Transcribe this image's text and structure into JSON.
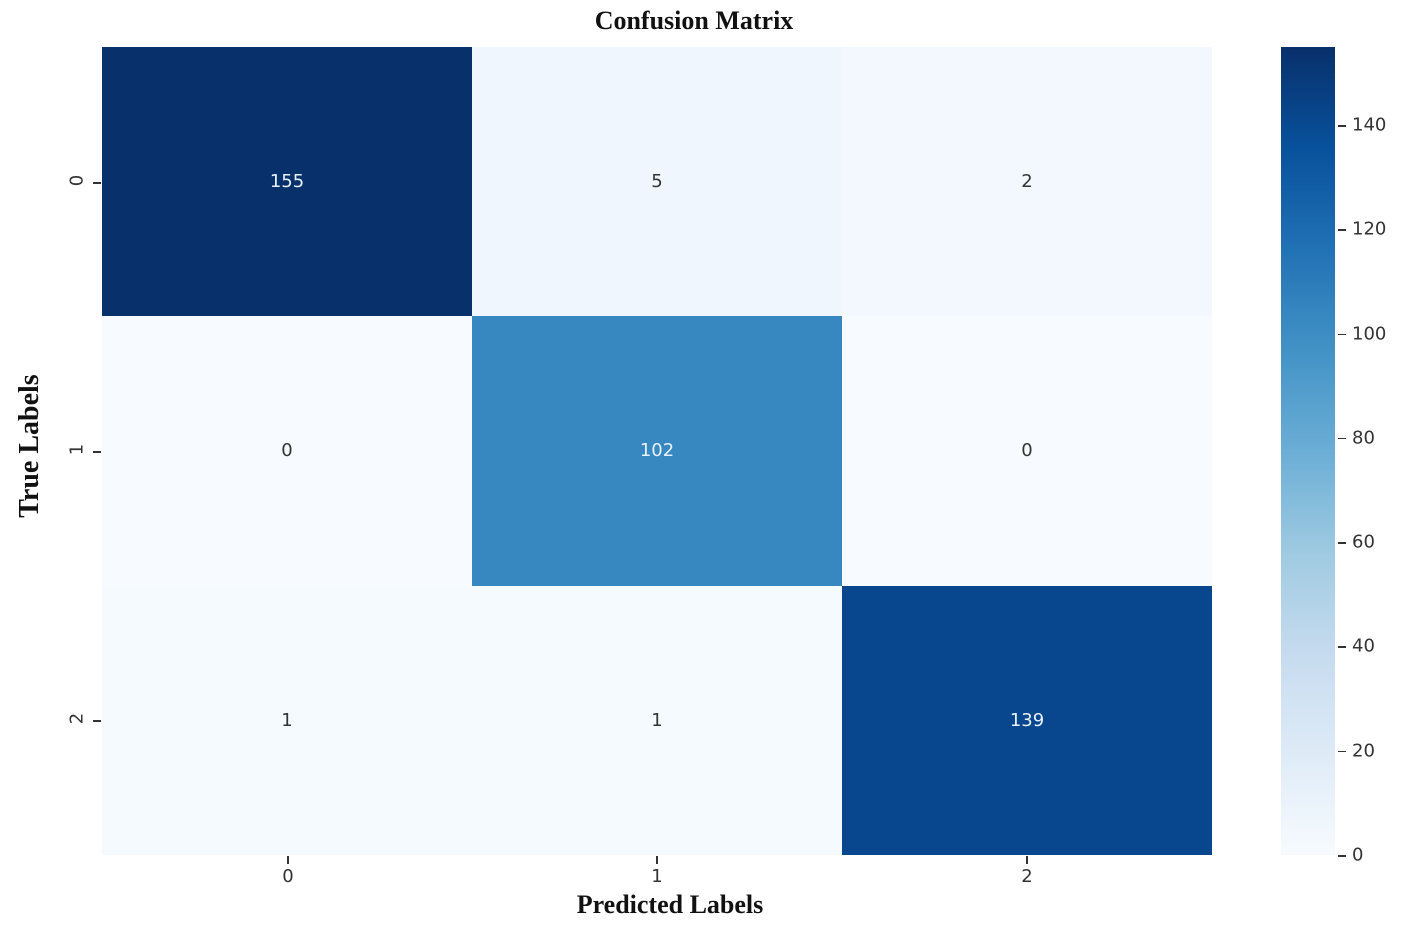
{
  "chart_data": {
    "type": "heatmap",
    "title": "Confusion Matrix",
    "xlabel": "Predicted Labels",
    "ylabel": "True Labels",
    "x_categories": [
      "0",
      "1",
      "2"
    ],
    "y_categories": [
      "0",
      "1",
      "2"
    ],
    "matrix": [
      [
        155,
        5,
        2
      ],
      [
        0,
        102,
        0
      ],
      [
        1,
        1,
        139
      ]
    ],
    "colormap": "Blues",
    "colorbar": {
      "min": 0,
      "max": 155,
      "ticks": [
        "0",
        "20",
        "40",
        "60",
        "80",
        "100",
        "120",
        "140"
      ]
    }
  },
  "labels": {
    "title": "Confusion Matrix",
    "xlabel": "Predicted Labels",
    "ylabel": "True Labels",
    "xticks": [
      "0",
      "1",
      "2"
    ],
    "yticks": [
      "0",
      "1",
      "2"
    ],
    "cells": [
      [
        "155",
        "5",
        "2"
      ],
      [
        "0",
        "102",
        "0"
      ],
      [
        "1",
        "1",
        "139"
      ]
    ],
    "cbar_ticks": [
      "0",
      "20",
      "40",
      "60",
      "80",
      "100",
      "120",
      "140"
    ]
  },
  "colors": {
    "cells": [
      [
        "#08306b",
        "#f0f6fd",
        "#f3f8fe"
      ],
      [
        "#f7fbff",
        "#3787c0",
        "#f7fbff"
      ],
      [
        "#f5faff",
        "#f5faff",
        "#08478d"
      ]
    ],
    "text_light": "#e8f1fa",
    "text_dark": "#333333"
  }
}
